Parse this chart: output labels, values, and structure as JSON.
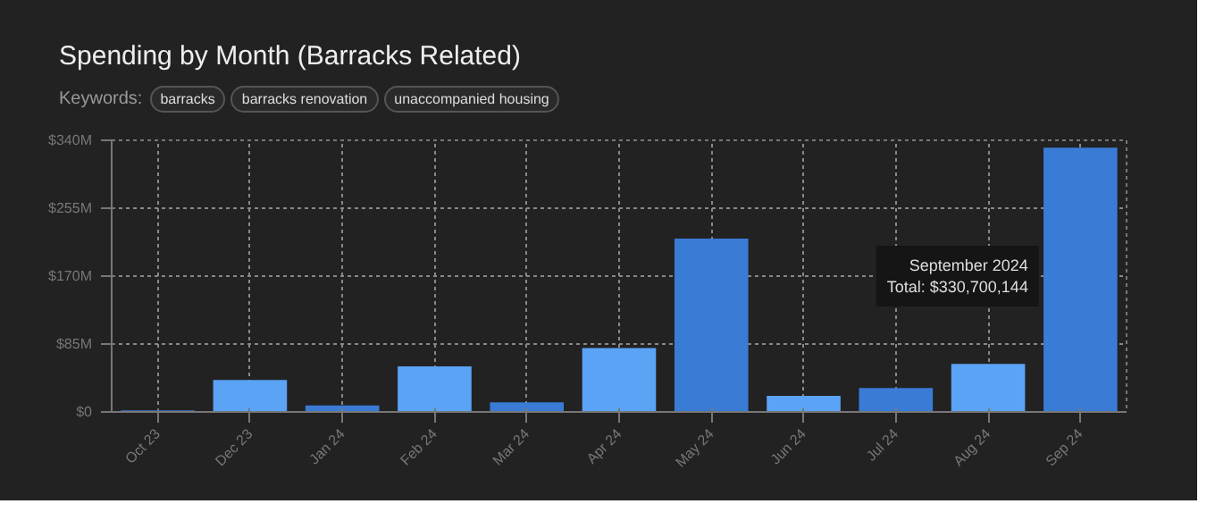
{
  "chart_data": {
    "type": "bar",
    "title": "Spending by Month (Barracks Related)",
    "categories": [
      "Oct 23",
      "Dec 23",
      "Jan 24",
      "Feb 24",
      "Mar 24",
      "Apr 24",
      "May 24",
      "Jun 24",
      "Jul 24",
      "Aug 24",
      "Sep 24"
    ],
    "values": [
      2,
      40,
      8,
      57,
      12,
      80,
      217,
      20,
      30,
      60,
      330.700144
    ],
    "colors": [
      "#3a7bd5",
      "#5ba3f5",
      "#3a7bd5",
      "#5ba3f5",
      "#3a7bd5",
      "#5ba3f5",
      "#3a7bd5",
      "#5ba3f5",
      "#3a7bd5",
      "#5ba3f5",
      "#3a7bd5"
    ],
    "ylim": [
      0,
      340
    ],
    "yticks": [
      {
        "value": 0,
        "label": "$0"
      },
      {
        "value": 85,
        "label": "$85M"
      },
      {
        "value": 170,
        "label": "$170M"
      },
      {
        "value": 255,
        "label": "$255M"
      },
      {
        "value": 340,
        "label": "$340M"
      }
    ],
    "grid": true,
    "annotations": [
      "Keywords:",
      "barracks",
      "barracks renovation",
      "unaccompanied housing",
      "September 2024\nTotal: $330,700,144"
    ]
  }
}
